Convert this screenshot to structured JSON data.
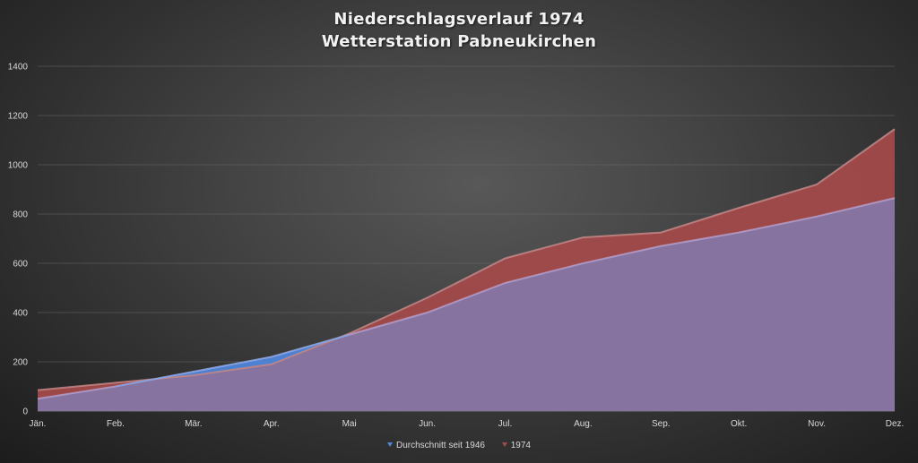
{
  "title_line1": "Niederschlagsverlauf 1974",
  "title_line2": "Wetterstation Pabneukirchen",
  "colors": {
    "series1_fill": "#4f86d9",
    "series1_line": "#6fa8f5",
    "series2_fill": "#a34a4a",
    "series2_line": "#c48686",
    "overlap_fill": "#86739f",
    "overlap_line": "#b3a1d1"
  },
  "chart_data": {
    "type": "area",
    "title": "Niederschlagsverlauf 1974 Wetterstation Pabneukirchen",
    "categories": [
      "Jän.",
      "Feb.",
      "Mär.",
      "Apr.",
      "Mai",
      "Jun.",
      "Jul.",
      "Aug.",
      "Sep.",
      "Okt.",
      "Nov.",
      "Dez."
    ],
    "series": [
      {
        "name": "Durchschnitt seit 1946",
        "values": [
          50,
          100,
          160,
          220,
          310,
          400,
          520,
          600,
          670,
          725,
          790,
          865
        ]
      },
      {
        "name": "1974",
        "values": [
          85,
          115,
          145,
          190,
          315,
          460,
          620,
          705,
          725,
          825,
          920,
          1145
        ]
      }
    ],
    "ylim": [
      0,
      1400
    ],
    "yticks": [
      0,
      200,
      400,
      600,
      800,
      1000,
      1200,
      1400
    ],
    "grid": true,
    "legend": "bottom"
  }
}
